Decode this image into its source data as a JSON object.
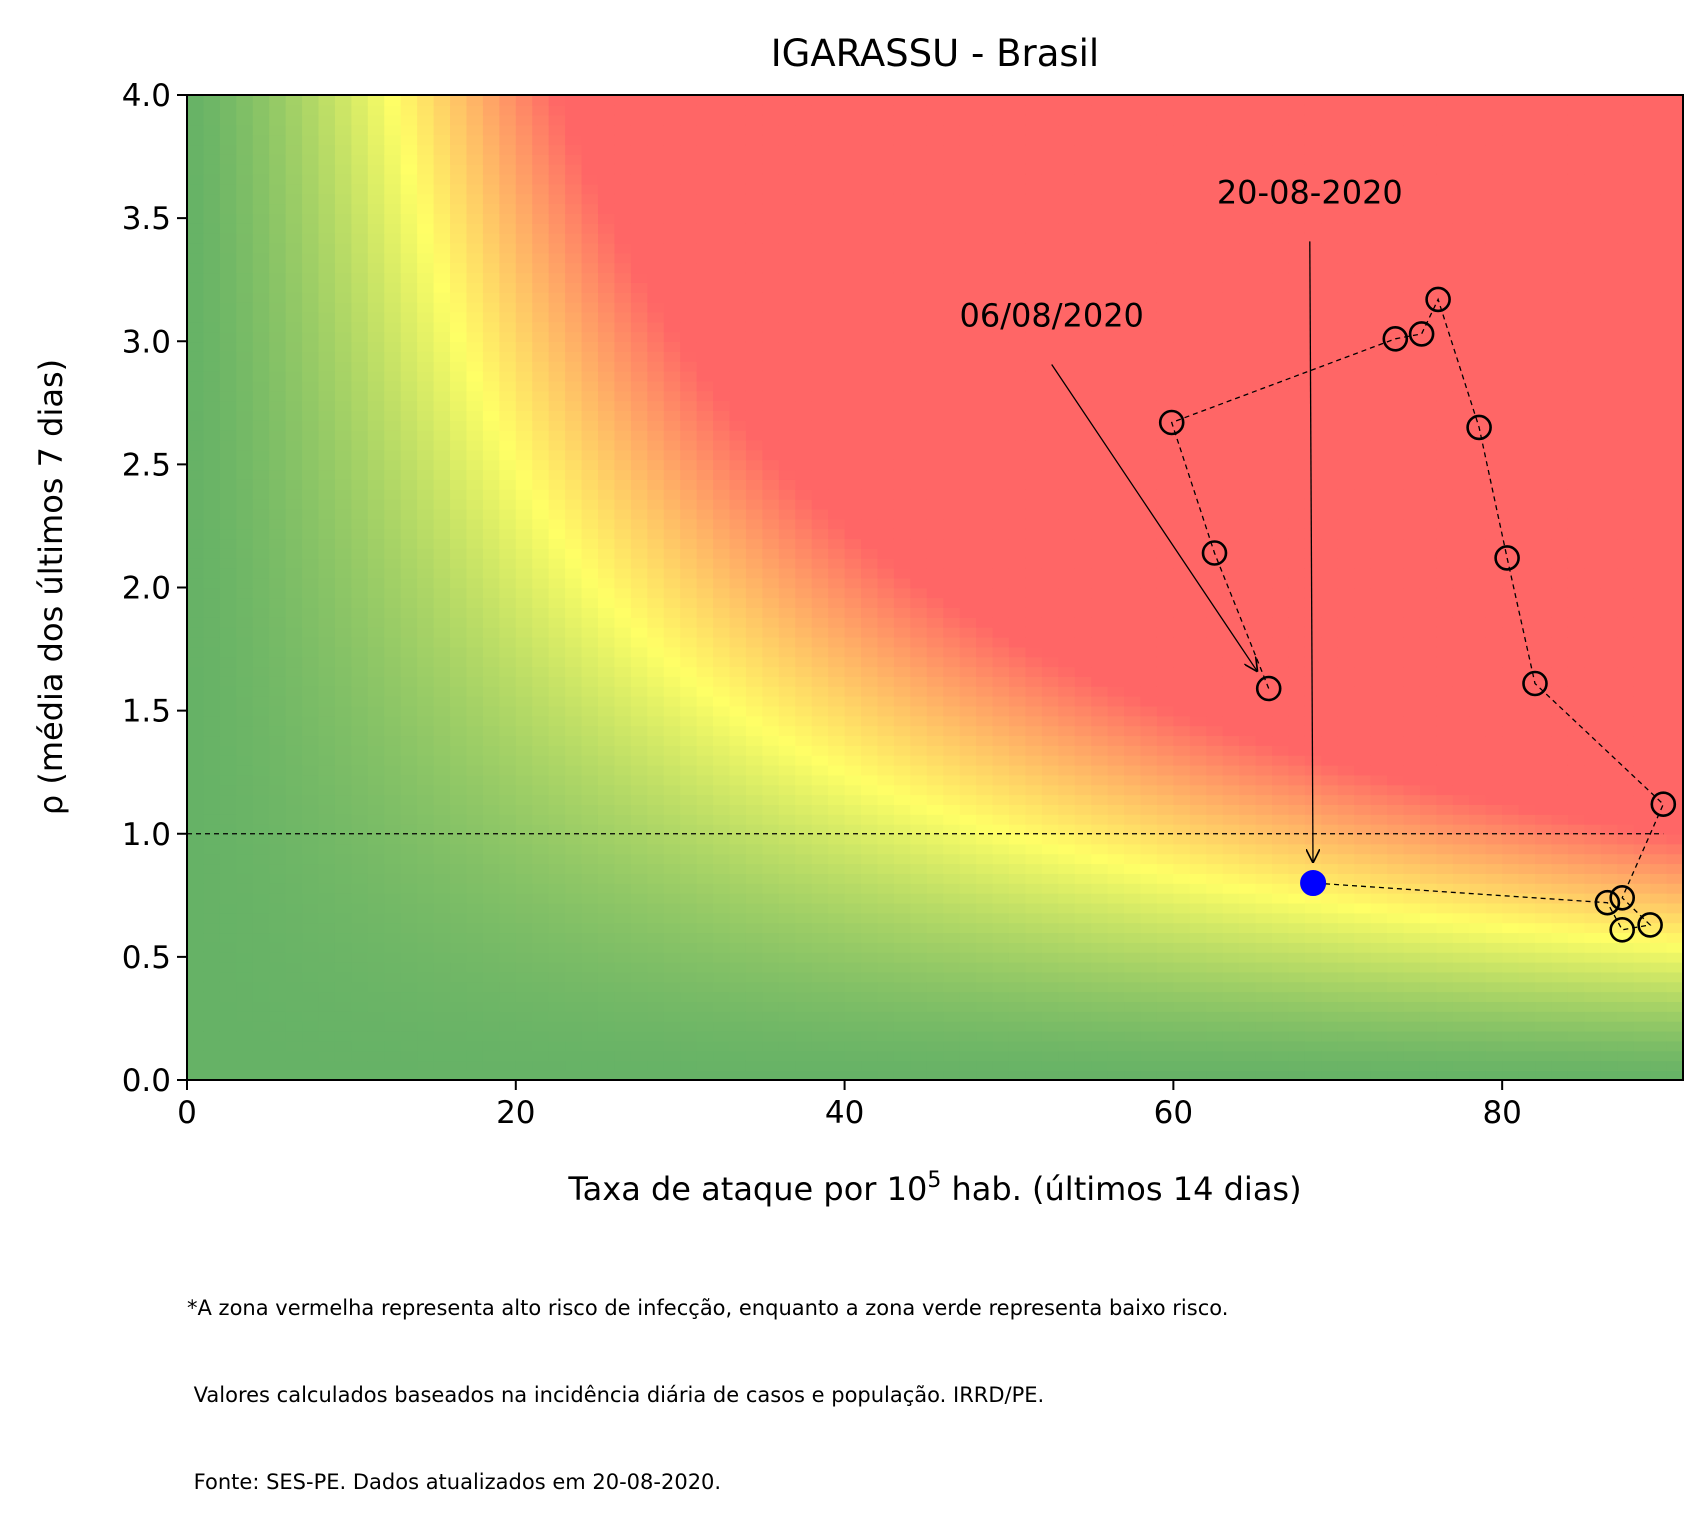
{
  "chart_data": {
    "type": "scatter",
    "title": "IGARASSU - Brasil",
    "xlabel": {
      "prefix": "Taxa de ataque por 10",
      "superscript": "5",
      "suffix": " hab. (últimos 14 dias)"
    },
    "ylabel": "ρ (média dos últimos 7 dias)",
    "xlim": [
      0,
      91
    ],
    "ylim": [
      0,
      4
    ],
    "x_ticks": [
      0,
      20,
      40,
      60,
      80
    ],
    "x_tick_labels": [
      "0",
      "20",
      "40",
      "60",
      "80"
    ],
    "y_ticks": [
      0,
      0.5,
      1,
      1.5,
      2,
      2.5,
      3,
      3.5,
      4
    ],
    "y_tick_labels": [
      "0.0",
      "0.5",
      "1.0",
      "1.5",
      "2.0",
      "2.5",
      "3.0",
      "3.5",
      "4.0"
    ],
    "grid": false,
    "background": "risk heatmap: green (low risk) - yellow - red (high risk)",
    "colors": {
      "green": "#66b266",
      "yellow": "#ffff66",
      "red": "#ff6666",
      "current_point": "#0000ff",
      "markers": "#000000"
    },
    "reference_line": {
      "y": 1.0,
      "style": "dashed"
    },
    "series": [
      {
        "points": [
          {
            "x": 65.8,
            "y": 1.59
          },
          {
            "x": 62.5,
            "y": 2.14
          },
          {
            "x": 59.9,
            "y": 2.67
          },
          {
            "x": 73.5,
            "y": 3.01
          },
          {
            "x": 75.1,
            "y": 3.03
          },
          {
            "x": 76.1,
            "y": 3.17
          },
          {
            "x": 78.6,
            "y": 2.65
          },
          {
            "x": 80.3,
            "y": 2.12
          },
          {
            "x": 82.0,
            "y": 1.61
          },
          {
            "x": 89.8,
            "y": 1.12
          },
          {
            "x": 87.3,
            "y": 0.74
          },
          {
            "x": 89.0,
            "y": 0.63
          },
          {
            "x": 87.3,
            "y": 0.61
          },
          {
            "x": 86.4,
            "y": 0.72
          },
          {
            "x": 68.5,
            "y": 0.8
          }
        ]
      }
    ],
    "annotations": [
      {
        "text": "06/08/2020",
        "text_x": 52.6,
        "text_y": 3.06,
        "arrow_to_x": 65.8,
        "arrow_to_y": 1.59
      },
      {
        "text": "20-08-2020",
        "text_x": 68.3,
        "text_y": 3.56,
        "arrow_to_x": 68.5,
        "arrow_to_y": 0.8
      }
    ]
  },
  "footnote": [
    "*A zona vermelha representa alto risco de infecção, enquanto a zona verde representa baixo risco.",
    " Valores calculados baseados na incidência diária de casos e população. IRRD/PE.",
    " Fonte: SES-PE. Dados atualizados em 20-08-2020."
  ]
}
